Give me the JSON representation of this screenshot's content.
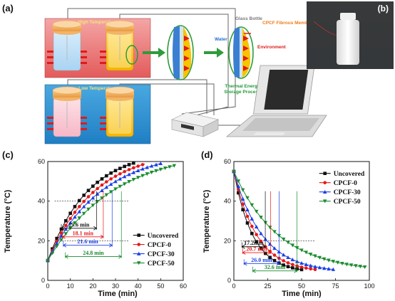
{
  "panel_labels": {
    "a": "(a)",
    "b": "(b)",
    "c": "(c)",
    "d": "(d)"
  },
  "schematic": {
    "high_label": "High Temperature",
    "low_label": "Low Temperature",
    "glass_bottle": "Glass Bottle",
    "membrane": "CPCF Fibrous Membrane",
    "water": "Water",
    "environment": "Environment",
    "process_line1": "Thermal Energy",
    "process_line2": "Storage Process"
  },
  "chart_data": [
    {
      "type": "line",
      "panel": "(c)",
      "xlabel": "Time (min)",
      "ylabel": "Temperature (°C)",
      "xlim": [
        0,
        60
      ],
      "ylim": [
        0,
        60
      ],
      "xticks": [
        0,
        10,
        20,
        30,
        40,
        50,
        60
      ],
      "yticks": [
        0,
        20,
        40,
        60
      ],
      "reference_lines": [
        20,
        40
      ],
      "legend_position": "lower-right",
      "series": [
        {
          "name": "Uncovered",
          "color": "#111111",
          "marker": "square",
          "end": 38,
          "tau": 18,
          "y0": 10,
          "yinf": 66
        },
        {
          "name": "CPCF-0",
          "color": "#e51a1a",
          "marker": "circle",
          "end": 43,
          "tau": 21,
          "y0": 10,
          "yinf": 66
        },
        {
          "name": "CPCF-30",
          "color": "#1a3fe5",
          "marker": "triangle-up",
          "end": 50,
          "tau": 24,
          "y0": 10,
          "yinf": 66
        },
        {
          "name": "CPCF-50",
          "color": "#1a8c2e",
          "marker": "triangle-down",
          "end": 56,
          "tau": 29,
          "y0": 10,
          "yinf": 66
        }
      ],
      "intervals": [
        {
          "label": "15.6 min",
          "start": 6.0,
          "end": 21.6,
          "y": 26.3,
          "color": "#111111"
        },
        {
          "label": "18.1 min",
          "start": 6.5,
          "end": 24.6,
          "y": 22.0,
          "color": "#e51a1a"
        },
        {
          "label": "21.6 min",
          "start": 6.9,
          "end": 28.5,
          "y": 17.7,
          "color": "#1a3fe5"
        },
        {
          "label": "24.8 min",
          "start": 7.8,
          "end": 32.6,
          "y": 12.0,
          "color": "#1a8c2e"
        }
      ]
    },
    {
      "type": "line",
      "panel": "(d)",
      "xlabel": "Time (min)",
      "ylabel": "Temperature (°C)",
      "xlim": [
        0,
        100
      ],
      "ylim": [
        0,
        60
      ],
      "xticks": [
        0,
        25,
        50,
        75,
        100
      ],
      "yticks": [
        0,
        20,
        40,
        60
      ],
      "reference_lines": [
        20
      ],
      "legend_position": "top-right",
      "series": [
        {
          "name": "Uncovered",
          "color": "#111111",
          "marker": "square",
          "end": 50,
          "tau": 14,
          "y0": 55,
          "yinf": 4
        },
        {
          "name": "CPCF-0",
          "color": "#e51a1a",
          "marker": "circle",
          "end": 60,
          "tau": 17,
          "y0": 55,
          "yinf": 4
        },
        {
          "name": "CPCF-30",
          "color": "#1a3fe5",
          "marker": "triangle-up",
          "end": 74,
          "tau": 21,
          "y0": 55,
          "yinf": 4
        },
        {
          "name": "CPCF-50",
          "color": "#1a8c2e",
          "marker": "triangle-down",
          "end": 98,
          "tau": 33,
          "y0": 55,
          "yinf": 4
        }
      ],
      "intervals": [
        {
          "label": "17.2min",
          "start": 6.0,
          "end": 23.2,
          "y": 17.0,
          "color": "#111111"
        },
        {
          "label": "20.7 min",
          "start": 6.5,
          "end": 27.2,
          "y": 14.0,
          "color": "#e51a1a"
        },
        {
          "label": "26.0 min",
          "start": 7.5,
          "end": 33.5,
          "y": 8.5,
          "color": "#1a3fe5"
        },
        {
          "label": "32.6 min",
          "start": 14.0,
          "end": 46.6,
          "y": 4.8,
          "color": "#1a8c2e"
        }
      ]
    }
  ]
}
